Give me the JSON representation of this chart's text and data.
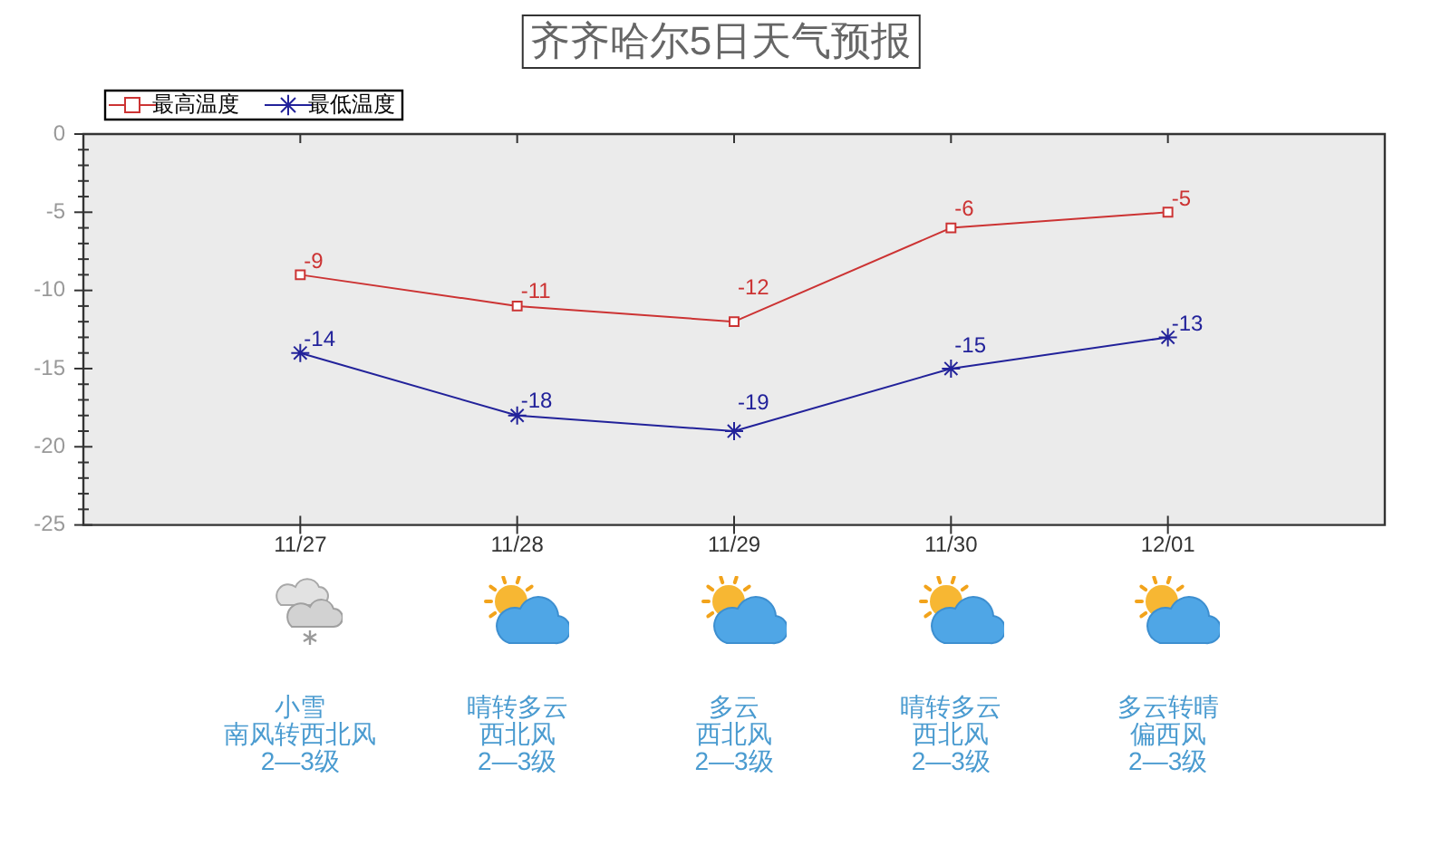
{
  "chart_data": {
    "type": "line",
    "title": "齐齐哈尔5日天气预报",
    "categories": [
      null,
      "11/27",
      "11/28",
      "11/29",
      "11/30",
      "12/01",
      null
    ],
    "series": [
      {
        "name": "最高温度",
        "color": "#cc3333",
        "marker": "square",
        "values": [
          null,
          -9,
          -11,
          -12,
          -6,
          -5,
          null
        ]
      },
      {
        "name": "最低温度",
        "color": "#22229a",
        "marker": "cross",
        "values": [
          null,
          -14,
          -18,
          -19,
          -15,
          -13,
          null
        ]
      }
    ],
    "ylim": [
      -25,
      0
    ],
    "yticks": [
      -25,
      {
        "value": -24,
        "label": null
      },
      {
        "value": -23,
        "label": null
      },
      {
        "value": -22,
        "label": null
      },
      {
        "value": -21,
        "label": null
      },
      -20,
      {
        "value": -19,
        "label": null
      },
      {
        "value": -18,
        "label": null
      },
      {
        "value": -17,
        "label": null
      },
      {
        "value": -16,
        "label": null
      },
      -15,
      {
        "value": -14,
        "label": null
      },
      {
        "value": -13,
        "label": null
      },
      {
        "value": -12,
        "label": null
      },
      {
        "value": -11,
        "label": null
      },
      -10,
      {
        "value": -9,
        "label": null
      },
      {
        "value": -8,
        "label": null
      },
      {
        "value": -7,
        "label": null
      },
      {
        "value": -6,
        "label": null
      },
      -5,
      {
        "value": -4,
        "label": null
      },
      {
        "value": -3,
        "label": null
      },
      {
        "value": -2,
        "label": null
      },
      {
        "value": -1,
        "label": null
      },
      0
    ],
    "legend": "top left",
    "data_labels": true,
    "line_style": "solid",
    "annotations": [
      "小雪",
      "晴转多云",
      "多云",
      "晴转多云",
      "多云转晴",
      "南风转西北风",
      "西北风",
      "西北风",
      "西北风",
      "偏西风",
      "2—3级",
      "2—3级",
      "2—3级",
      "2—3级",
      "2—3级"
    ]
  }
}
